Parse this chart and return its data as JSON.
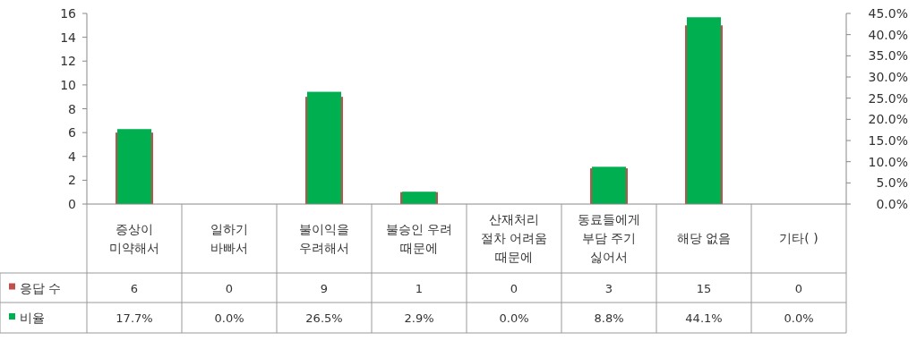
{
  "chart_data": {
    "type": "bar",
    "categories": [
      "증상이\n미약해서",
      "일하기\n바빠서",
      "불이익을\n우려해서",
      "불승인 우려\n때문에",
      "산재처리\n절차 어려움\n때문에",
      "동료들에게\n부담 주기\n싫어서",
      "해당 없음",
      "기타(  )"
    ],
    "series": [
      {
        "name": "응답 수",
        "color": "#c0504d",
        "values": [
          6,
          0,
          9,
          1,
          0,
          3,
          15,
          0
        ],
        "value_labels": [
          "6",
          "0",
          "9",
          "1",
          "0",
          "3",
          "15",
          "0"
        ]
      },
      {
        "name": "비율",
        "color": "#00b050",
        "axis": "y2",
        "values": [
          17.7,
          0.0,
          26.5,
          2.9,
          0.0,
          8.8,
          44.1,
          0.0
        ],
        "value_labels": [
          "17.7%",
          "0.0%",
          "26.5%",
          "2.9%",
          "0.0%",
          "8.8%",
          "44.1%",
          "0.0%"
        ]
      }
    ],
    "ylim": [
      0,
      16
    ],
    "yticks": [
      0,
      2,
      4,
      6,
      8,
      10,
      12,
      14,
      16
    ],
    "y2lim": [
      0,
      45
    ],
    "y2ticks": [
      {
        "value": 0,
        "label": "0.0%"
      },
      {
        "value": 5,
        "label": "5.0%"
      },
      {
        "value": 10,
        "label": "10.0%"
      },
      {
        "value": 15,
        "label": "15.0%"
      },
      {
        "value": 20,
        "label": "20.0%"
      },
      {
        "value": 25,
        "label": "25.0%"
      },
      {
        "value": 30,
        "label": "30.0%"
      },
      {
        "value": 35,
        "label": "35.0%"
      },
      {
        "value": 40,
        "label": "40.0%"
      },
      {
        "value": 45,
        "label": "45.0%"
      }
    ],
    "legend": "left"
  }
}
